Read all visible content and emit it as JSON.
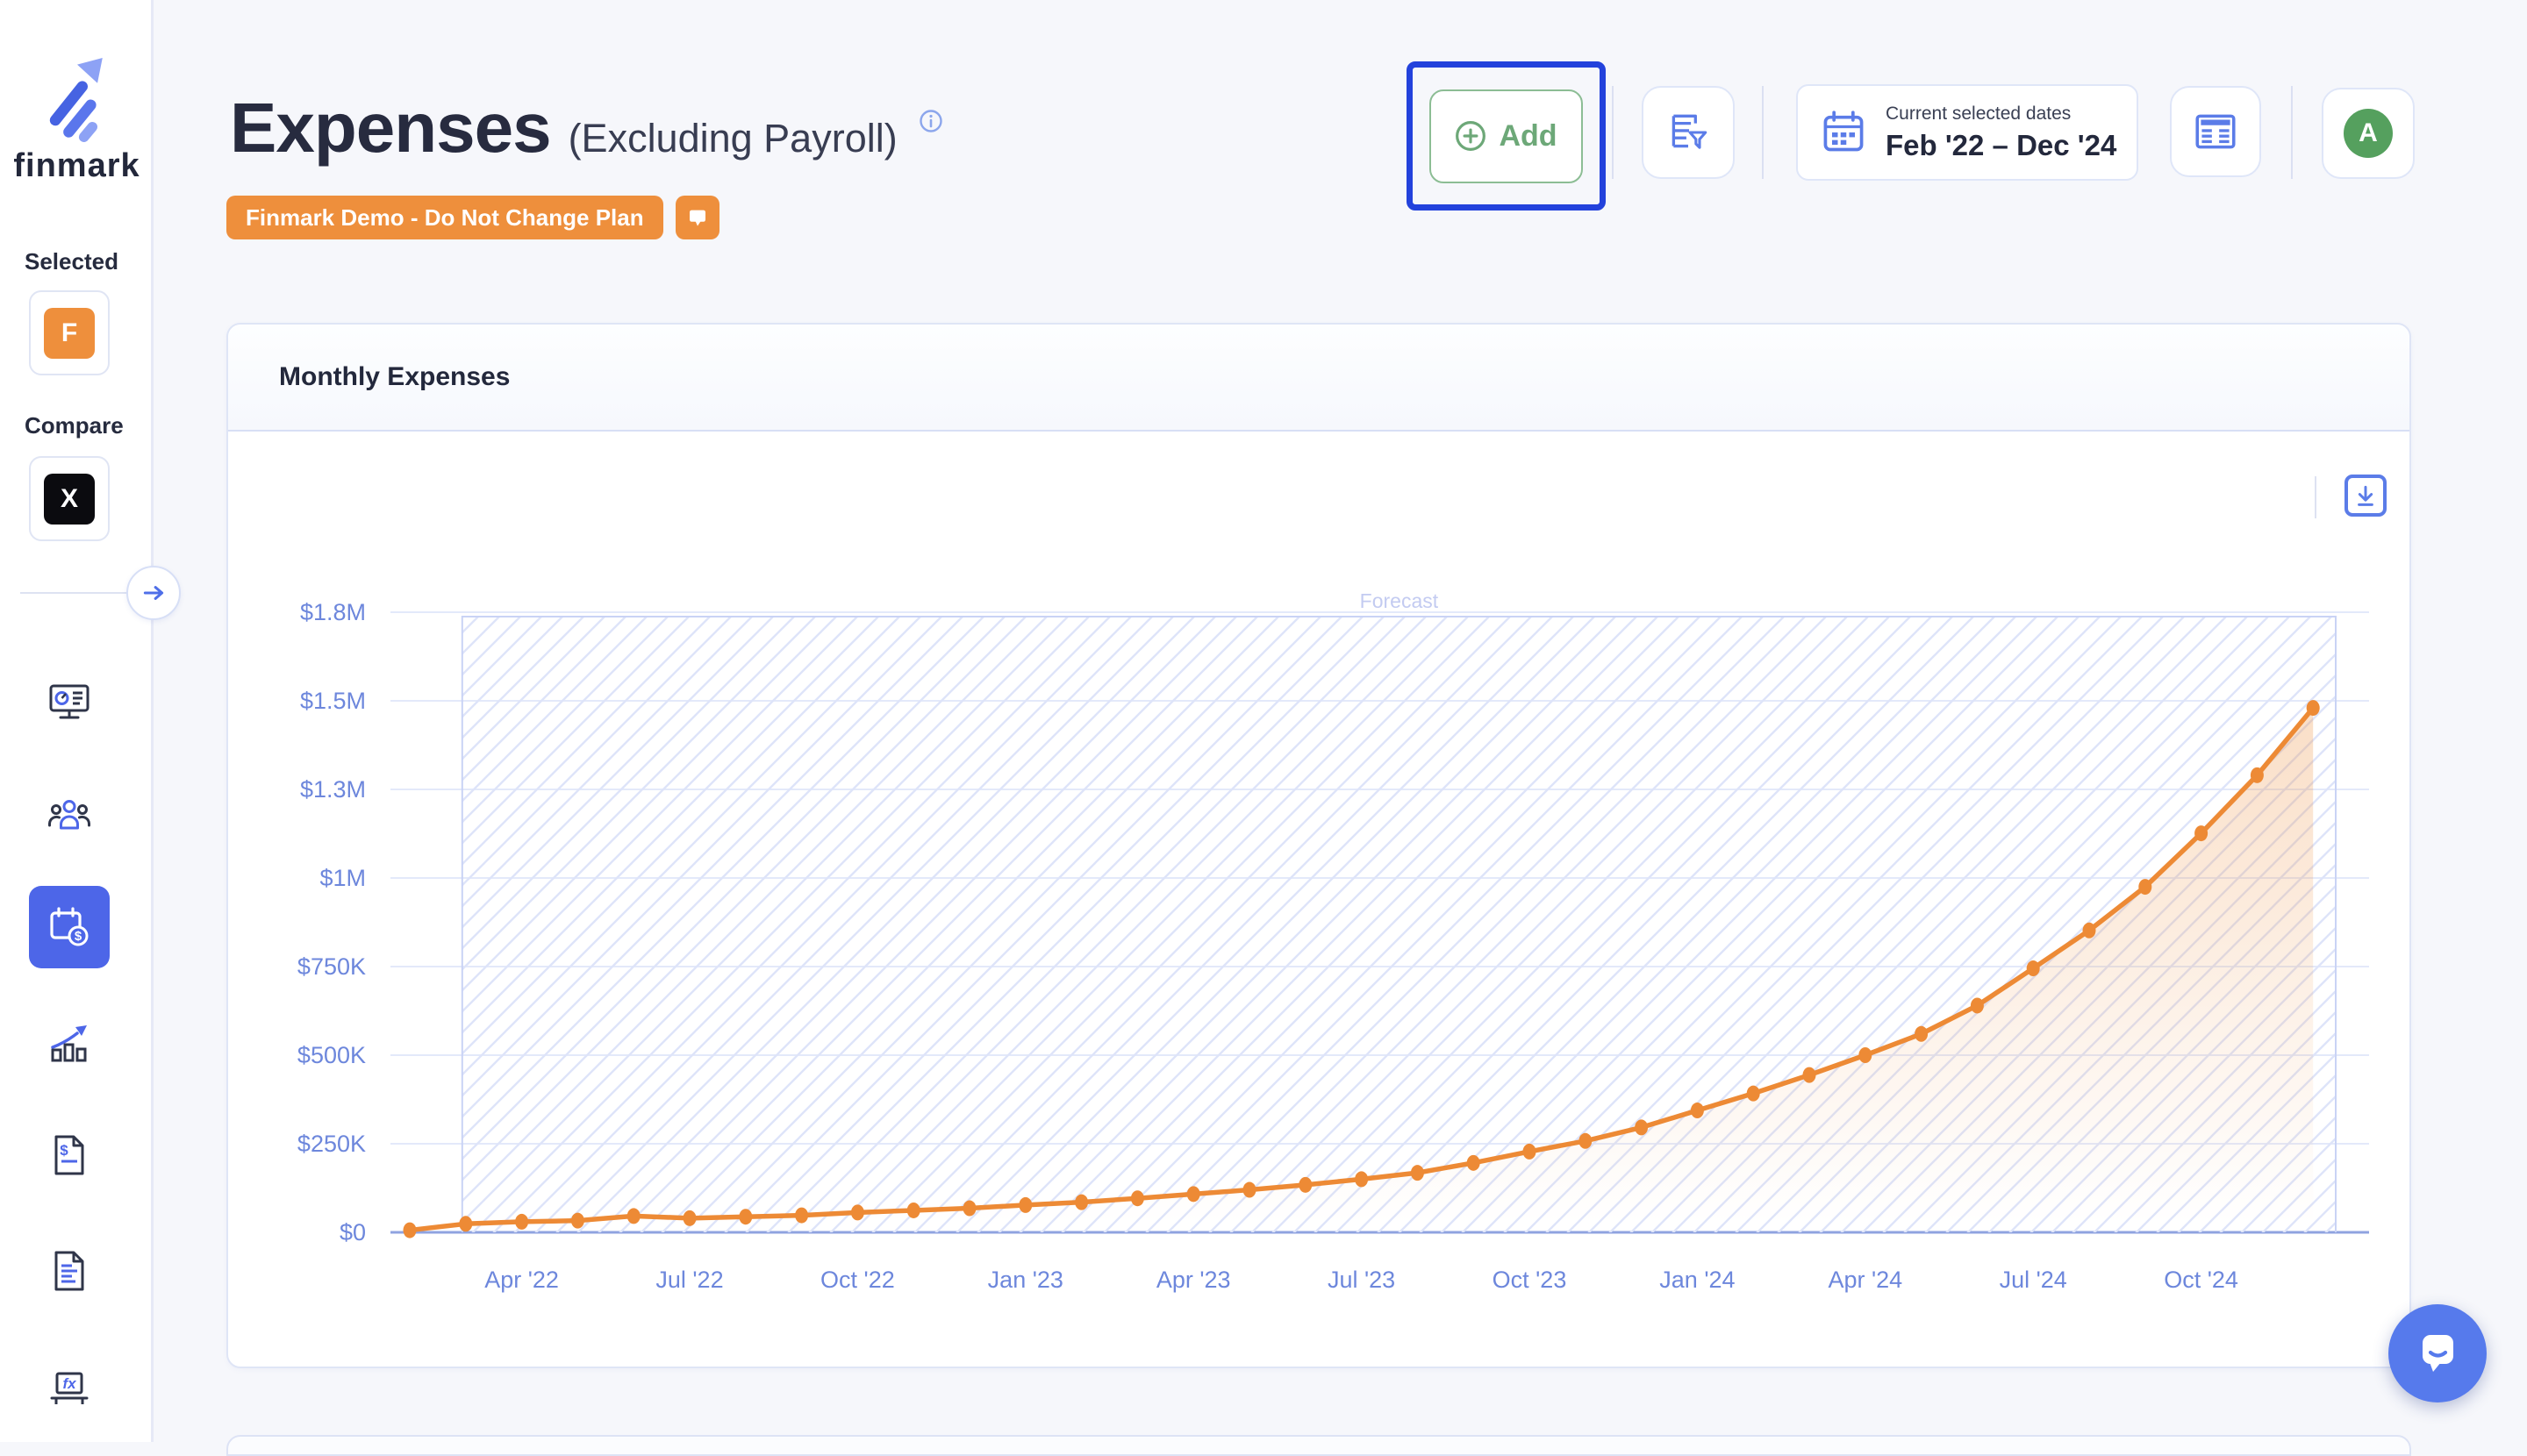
{
  "brand": "finmark",
  "sidebar": {
    "selected_label": "Selected",
    "selected_plan_initial": "F",
    "compare_label": "Compare",
    "compare_plan_initial": "X",
    "nav_items": [
      "dashboard",
      "team",
      "expenses",
      "metrics",
      "invoices",
      "reports",
      "formulas"
    ],
    "active_nav": "expenses"
  },
  "header": {
    "title": "Expenses",
    "subtitle": "(Excluding Payroll)",
    "plan_badge": "Finmark Demo - Do Not Change Plan",
    "add_button_label": "Add",
    "dates_caption": "Current selected dates",
    "dates_value": "Feb '22 – Dec '24",
    "avatar_initial": "A"
  },
  "card": {
    "title": "Monthly Expenses"
  },
  "chart_data": {
    "type": "line",
    "title": "Monthly Expenses",
    "unit": "USD (thousands)",
    "legend": "none",
    "grid": true,
    "ylim_k": [
      0,
      1750
    ],
    "months": [
      "Feb '22",
      "Mar '22",
      "Apr '22",
      "May '22",
      "Jun '22",
      "Jul '22",
      "Aug '22",
      "Sep '22",
      "Oct '22",
      "Nov '22",
      "Dec '22",
      "Jan '23",
      "Feb '23",
      "Mar '23",
      "Apr '23",
      "May '23",
      "Jun '23",
      "Jul '23",
      "Aug '23",
      "Sep '23",
      "Oct '23",
      "Nov '23",
      "Dec '23",
      "Jan '24",
      "Feb '24",
      "Mar '24",
      "Apr '24",
      "May '24",
      "Jun '24",
      "Jul '24",
      "Aug '24",
      "Sep '24",
      "Oct '24",
      "Nov '24",
      "Dec '24"
    ],
    "values_usd_k": [
      6,
      24,
      30,
      33,
      46,
      40,
      44,
      48,
      56,
      62,
      68,
      77,
      85,
      96,
      108,
      120,
      134,
      150,
      168,
      196,
      228,
      258,
      296,
      344,
      392,
      444,
      500,
      560,
      640,
      745,
      852,
      975,
      1126,
      1290,
      1480
    ],
    "y_ticks": [
      {
        "label": "$0",
        "value_k": 0
      },
      {
        "label": "$250K",
        "value_k": 250
      },
      {
        "label": "$500K",
        "value_k": 500
      },
      {
        "label": "$750K",
        "value_k": 750
      },
      {
        "label": "$1M",
        "value_k": 1000
      },
      {
        "label": "$1.3M",
        "value_k": 1250
      },
      {
        "label": "$1.5M",
        "value_k": 1500
      },
      {
        "label": "$1.8M",
        "value_k": 1750
      }
    ],
    "x_ticks": [
      {
        "label": "Apr '22",
        "index": 2
      },
      {
        "label": "Jul '22",
        "index": 5
      },
      {
        "label": "Oct '22",
        "index": 8
      },
      {
        "label": "Jan '23",
        "index": 11
      },
      {
        "label": "Apr '23",
        "index": 14
      },
      {
        "label": "Jul '23",
        "index": 17
      },
      {
        "label": "Oct '23",
        "index": 20
      },
      {
        "label": "Jan '24",
        "index": 23
      },
      {
        "label": "Apr '24",
        "index": 26
      },
      {
        "label": "Jul '24",
        "index": 29
      },
      {
        "label": "Oct '24",
        "index": 32
      }
    ],
    "forecast_label": "Forecast",
    "forecast_start_month": "Mar '22",
    "forecast_start_index": 1,
    "colors": {
      "line": "#ED8A35",
      "grid": "#E3E9FA",
      "axis": "#8FA3E0",
      "tick_text": "#6D87DC",
      "hatch_line": "#DEE4F9",
      "hatch_border": "#C9D3F5",
      "forecast_text": "#C3CBF1"
    }
  },
  "ui_colors": {
    "accent_blue": "#4D66E8",
    "icon_blue": "#5B7CE8",
    "selection_outline": "#2342DC",
    "orange": "#EE8F3C",
    "green": "#55A05E",
    "intercom_blue": "#567AEC"
  }
}
